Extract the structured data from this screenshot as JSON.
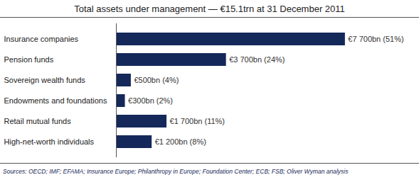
{
  "chart_data": {
    "type": "bar",
    "title": "Total assets under management — €15.1trn at 31 December 2011",
    "orientation": "horizontal",
    "categories": [
      "Insurance companies",
      "Pension funds",
      "Sovereign wealth funds",
      "Endowments and foundations",
      "Retail mutual funds",
      "High-net-worth individuals"
    ],
    "values": [
      7700,
      3700,
      500,
      300,
      1700,
      1200
    ],
    "value_labels": [
      "€7 700bn (51%)",
      "€3 700bn (24%)",
      "€500bn (4%)",
      "€300bn (2%)",
      "€1 700bn (11%)",
      "€1 200bn (8%)"
    ],
    "data_labels": true,
    "color": "#14285a",
    "xlim": [
      0,
      10000
    ],
    "tick_labels": "y",
    "caption": "Sources: OECD; IMF; EFAMA; Insurance Europe; Philanthropy in Europe; Foundation Center; ECB; FSB; Oliver Wyman analysis"
  }
}
